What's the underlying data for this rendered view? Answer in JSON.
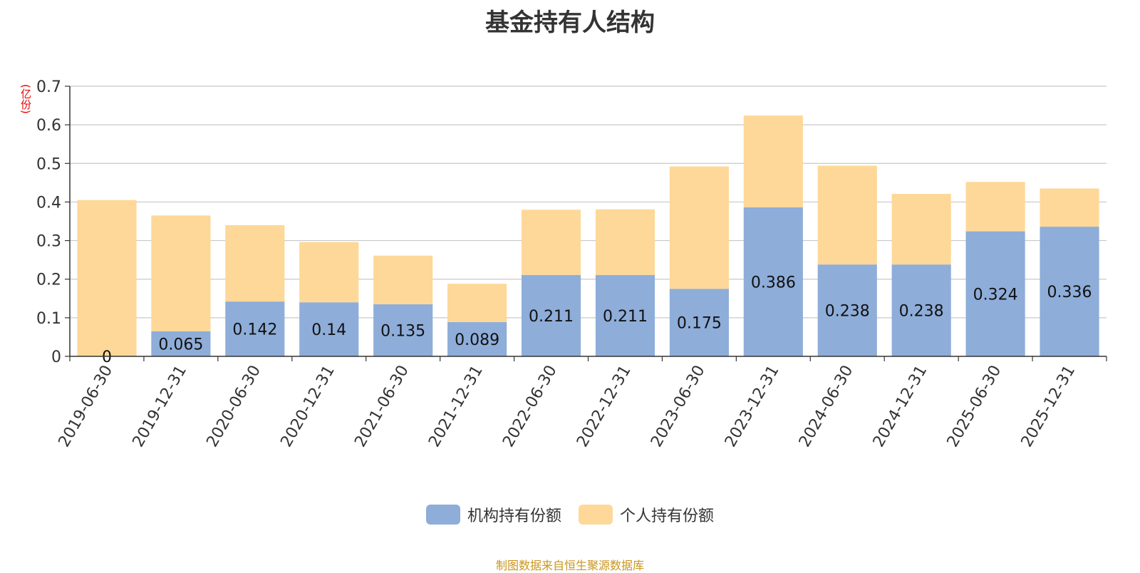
{
  "chart_data": {
    "type": "bar",
    "stacked": true,
    "title": "基金持有人结构",
    "ylabel": "(亿份)",
    "xlabel": "",
    "ylim": [
      0,
      0.7
    ],
    "yticks": [
      "0",
      "0.1",
      "0.2",
      "0.3",
      "0.4",
      "0.5",
      "0.6",
      "0.7"
    ],
    "categories": [
      "2019-06-30",
      "2019-12-31",
      "2020-06-30",
      "2020-12-31",
      "2021-06-30",
      "2021-12-31",
      "2022-06-30",
      "2022-12-31",
      "2023-06-30",
      "2023-12-31",
      "2024-06-30",
      "2024-12-31",
      "2025-06-30",
      "2025-12-31"
    ],
    "series": [
      {
        "name": "机构持有份额",
        "color": "#8eadd9",
        "values": [
          0,
          0.065,
          0.142,
          0.14,
          0.135,
          0.089,
          0.211,
          0.211,
          0.175,
          0.386,
          0.238,
          0.238,
          0.324,
          0.336
        ],
        "labels": [
          "0",
          "0.065",
          "0.142",
          "0.14",
          "0.135",
          "0.089",
          "0.211",
          "0.211",
          "0.175",
          "0.386",
          "0.238",
          "0.238",
          "0.324",
          "0.336"
        ]
      },
      {
        "name": "个人持有份额",
        "color": "#fed898",
        "values": [
          0.405,
          0.3,
          0.198,
          0.156,
          0.126,
          0.099,
          0.169,
          0.17,
          0.317,
          0.238,
          0.256,
          0.183,
          0.128,
          0.099
        ]
      }
    ],
    "grid": true,
    "legend_position": "bottom"
  },
  "footer": {
    "source": "制图数据来自恒生聚源数据库"
  }
}
